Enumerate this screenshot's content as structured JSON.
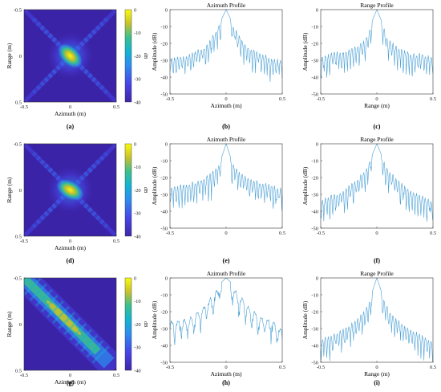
{
  "figure": {
    "panels": [
      {
        "id": "a",
        "caption": "(a)",
        "kind": "image",
        "xlabel": "Azimuth (m)",
        "ylabel": "Range (m)",
        "xticks": [
          "-0.5",
          "0",
          "0.5"
        ],
        "yticks": [
          "-0.5",
          "0",
          "0.5"
        ],
        "pattern": "cross"
      },
      {
        "id": "b",
        "caption": "(b)",
        "kind": "profile",
        "title": "Azimuth Profile",
        "xlabel": "Azimuth (m)",
        "ylabel": "Amplitude (dB)",
        "xticks": [
          "-0.5",
          "0",
          "0.5"
        ],
        "yticks": [
          "0",
          "-10",
          "-20",
          "-30",
          "-40",
          "-50"
        ]
      },
      {
        "id": "c",
        "caption": "(c)",
        "kind": "profile",
        "title": "Range Profile",
        "xlabel": "Range (m)",
        "ylabel": "Amplitude (dB)",
        "xticks": [
          "-0.5",
          "0",
          "0.5"
        ],
        "yticks": [
          "0",
          "-10",
          "-20",
          "-30",
          "-40",
          "-50"
        ]
      },
      {
        "id": "d",
        "caption": "(d)",
        "kind": "image",
        "xlabel": "Azimuth (m)",
        "ylabel": "Range (m)",
        "xticks": [
          "-0.5",
          "0",
          "0.5"
        ],
        "yticks": [
          "-0.5",
          "0",
          "0.5"
        ],
        "pattern": "cross"
      },
      {
        "id": "e",
        "caption": "(e)",
        "kind": "profile",
        "title": "Azimuth Profile",
        "xlabel": "",
        "ylabel": "Amplitude (dB)",
        "xticks": [
          "-0.5",
          "0",
          "0.5"
        ],
        "yticks": [
          "0",
          "-10",
          "-20",
          "-30",
          "-40",
          "-50"
        ]
      },
      {
        "id": "f",
        "caption": "(f)",
        "kind": "profile",
        "title": "Range Profile",
        "xlabel": "",
        "ylabel": "Amplitude (dB)",
        "xticks": [
          "-0.5",
          "0",
          "0.5"
        ],
        "yticks": [
          "0",
          "-10",
          "-20",
          "-30",
          "-40",
          "-50"
        ]
      },
      {
        "id": "g",
        "caption": "(g)",
        "kind": "image",
        "xlabel": "Azimuth (m)",
        "ylabel": "Range (m)",
        "xticks": [
          "-0.5",
          "0",
          "0.5"
        ],
        "yticks": [
          "-0.5",
          "0",
          "0.5"
        ],
        "pattern": "diagonal"
      },
      {
        "id": "h",
        "caption": "(h)",
        "kind": "profile",
        "title": "Azimuth Profile",
        "xlabel": "Azimuth (m)",
        "ylabel": "Amplitude (dB)",
        "xticks": [
          "-0.5",
          "0",
          "0.5"
        ],
        "yticks": [
          "0",
          "-10",
          "-20",
          "-30",
          "-40",
          "-50"
        ]
      },
      {
        "id": "i",
        "caption": "(i)",
        "kind": "profile",
        "title": "Range Profile",
        "xlabel": "Range (m)",
        "ylabel": "Amplitude (dB)",
        "xticks": [
          "-0.5",
          "0",
          "0.5"
        ],
        "yticks": [
          "0",
          "-10",
          "-20",
          "-30",
          "-40",
          "-50"
        ]
      }
    ],
    "colorbar": {
      "label": "dB",
      "ticks": [
        "0",
        "-10",
        "-20",
        "-30",
        "-40"
      ]
    }
  },
  "colors": {
    "line": "#4a9fd4",
    "image_bg": "#3b23a8",
    "frame": "#333333"
  },
  "chart_data": [
    {
      "type": "heatmap",
      "panel": "a",
      "xlabel": "Azimuth (m)",
      "ylabel": "Range (m)",
      "xlim": [
        -0.5,
        0.5
      ],
      "ylim": [
        0.5,
        -0.5
      ],
      "colorbar_label": "dB",
      "clim": [
        -40,
        0
      ],
      "peak": {
        "x": 0,
        "y": 0,
        "value": 0
      }
    },
    {
      "type": "line",
      "panel": "b",
      "title": "Azimuth Profile",
      "xlabel": "Azimuth (m)",
      "ylabel": "Amplitude (dB)",
      "xlim": [
        -0.5,
        0.5
      ],
      "ylim": [
        -50,
        0
      ],
      "x": [
        -0.5,
        -0.4,
        -0.3,
        -0.2,
        -0.1,
        -0.05,
        0,
        0.05,
        0.1,
        0.2,
        0.3,
        0.4,
        0.5
      ],
      "values": [
        -28,
        -27,
        -25,
        -22,
        -13,
        -7,
        0,
        -7,
        -13,
        -22,
        -25,
        -28,
        -30
      ]
    },
    {
      "type": "line",
      "panel": "c",
      "title": "Range Profile",
      "xlabel": "Range (m)",
      "ylabel": "Amplitude (dB)",
      "xlim": [
        -0.5,
        0.5
      ],
      "ylim": [
        -50,
        0
      ],
      "x": [
        -0.5,
        -0.4,
        -0.3,
        -0.2,
        -0.1,
        -0.05,
        0,
        0.05,
        0.1,
        0.2,
        0.3,
        0.4,
        0.5
      ],
      "values": [
        -27,
        -25,
        -24,
        -22,
        -17,
        -8,
        0,
        -8,
        -17,
        -22,
        -25,
        -26,
        -27
      ]
    },
    {
      "type": "heatmap",
      "panel": "d",
      "xlabel": "Azimuth (m)",
      "ylabel": "Range (m)",
      "xlim": [
        -0.5,
        0.5
      ],
      "ylim": [
        0.5,
        -0.5
      ],
      "colorbar_label": "dB",
      "clim": [
        -40,
        0
      ],
      "peak": {
        "x": 0,
        "y": 0,
        "value": 0
      }
    },
    {
      "type": "line",
      "panel": "e",
      "title": "Azimuth Profile",
      "ylabel": "Amplitude (dB)",
      "xlim": [
        -0.5,
        0.5
      ],
      "ylim": [
        -50,
        0
      ],
      "x": [
        -0.5,
        -0.4,
        -0.3,
        -0.2,
        -0.1,
        -0.05,
        0,
        0.05,
        0.1,
        0.2,
        0.3,
        0.4,
        0.5
      ],
      "values": [
        -26,
        -24,
        -22,
        -20,
        -15,
        -10,
        0,
        -10,
        -15,
        -20,
        -22,
        -24,
        -26
      ]
    },
    {
      "type": "line",
      "panel": "f",
      "title": "Range Profile",
      "ylabel": "Amplitude (dB)",
      "xlim": [
        -0.5,
        0.5
      ],
      "ylim": [
        -50,
        0
      ],
      "x": [
        -0.5,
        -0.4,
        -0.3,
        -0.2,
        -0.1,
        -0.05,
        0,
        0.05,
        0.1,
        0.2,
        0.3,
        0.4,
        0.5
      ],
      "values": [
        -33,
        -30,
        -27,
        -22,
        -15,
        -8,
        0,
        -8,
        -15,
        -22,
        -27,
        -30,
        -34
      ]
    },
    {
      "type": "heatmap",
      "panel": "g",
      "xlabel": "Azimuth (m)",
      "ylabel": "Range (m)",
      "xlim": [
        -0.5,
        0.5
      ],
      "ylim": [
        0.5,
        -0.5
      ],
      "colorbar_label": "dB",
      "clim": [
        -40,
        0
      ],
      "peak": {
        "x": -0.1,
        "y": -0.1,
        "value": 0
      }
    },
    {
      "type": "line",
      "panel": "h",
      "title": "Azimuth Profile",
      "xlabel": "Azimuth (m)",
      "ylabel": "Amplitude (dB)",
      "xlim": [
        -0.5,
        0.5
      ],
      "ylim": [
        -50,
        0
      ],
      "x": [
        -0.5,
        -0.4,
        -0.3,
        -0.2,
        -0.1,
        -0.05,
        0,
        0.05,
        0.1,
        0.2,
        0.3,
        0.4,
        0.5
      ],
      "values": [
        -25,
        -24,
        -22,
        -16,
        -8,
        -3,
        0,
        -3,
        -8,
        -16,
        -22,
        -24,
        -30
      ]
    },
    {
      "type": "line",
      "panel": "i",
      "title": "Range Profile",
      "xlabel": "Range (m)",
      "ylabel": "Amplitude (dB)",
      "xlim": [
        -0.5,
        0.5
      ],
      "ylim": [
        -50,
        0
      ],
      "x": [
        -0.5,
        -0.4,
        -0.3,
        -0.2,
        -0.1,
        -0.05,
        0,
        0.05,
        0.1,
        0.2,
        0.3,
        0.4,
        0.5
      ],
      "values": [
        -36,
        -33,
        -30,
        -25,
        -18,
        -10,
        0,
        -10,
        -18,
        -25,
        -30,
        -33,
        -38
      ]
    }
  ]
}
